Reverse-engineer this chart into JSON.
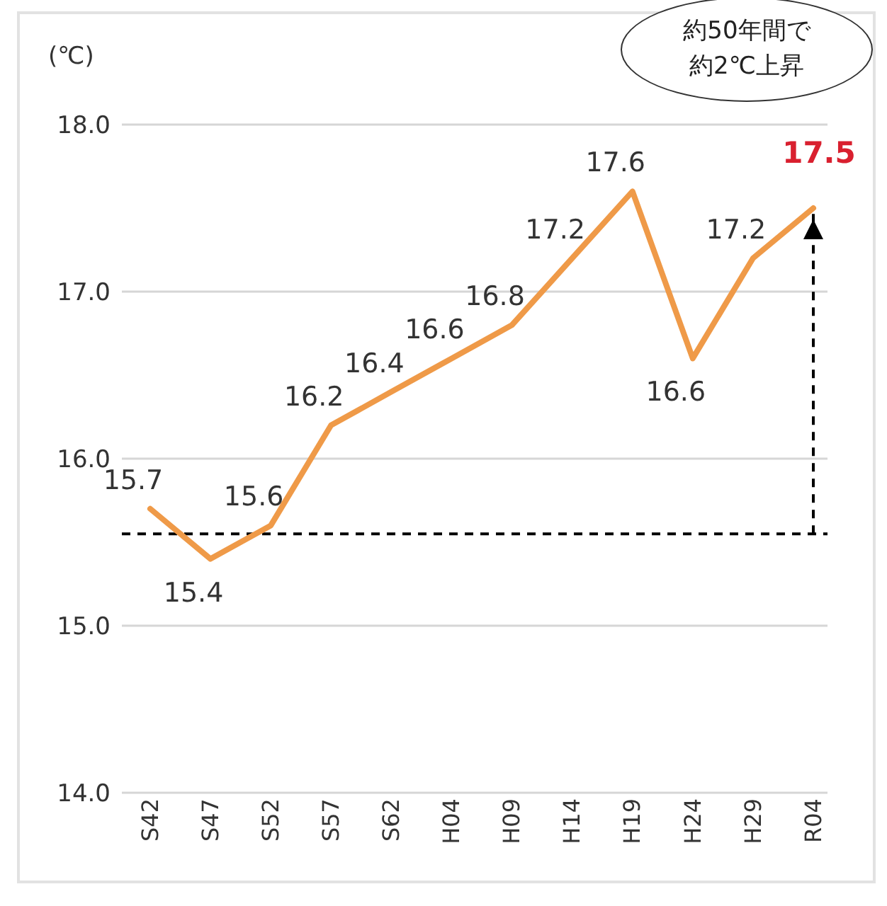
{
  "chart_data": {
    "type": "line",
    "ylabel": "(℃)",
    "categories": [
      "S42",
      "S47",
      "S52",
      "S57",
      "S62",
      "H04",
      "H09",
      "H14",
      "H19",
      "H24",
      "H29",
      "R04"
    ],
    "series": [
      {
        "color": "#ef9a48",
        "values": [
          15.7,
          15.4,
          15.6,
          16.2,
          16.4,
          16.6,
          16.8,
          17.2,
          17.6,
          16.6,
          17.2,
          17.5
        ]
      }
    ],
    "ylim": [
      14,
      18
    ],
    "yticks": [
      {
        "value": 14,
        "label": "14.0"
      },
      {
        "value": 15,
        "label": "15.0"
      },
      {
        "value": 16,
        "label": "16.0"
      },
      {
        "value": 17,
        "label": "17.0"
      },
      {
        "value": 18,
        "label": "18.0"
      }
    ],
    "grid": "y",
    "legend": false,
    "marker": "none",
    "line_style": "solid",
    "data_labels": true,
    "ref_lines": [
      {
        "axis": "y",
        "value": 15.55,
        "color": "#000000",
        "line_style": "dashed"
      }
    ],
    "annotations": [
      "約50年間で",
      "約2℃上昇"
    ]
  }
}
